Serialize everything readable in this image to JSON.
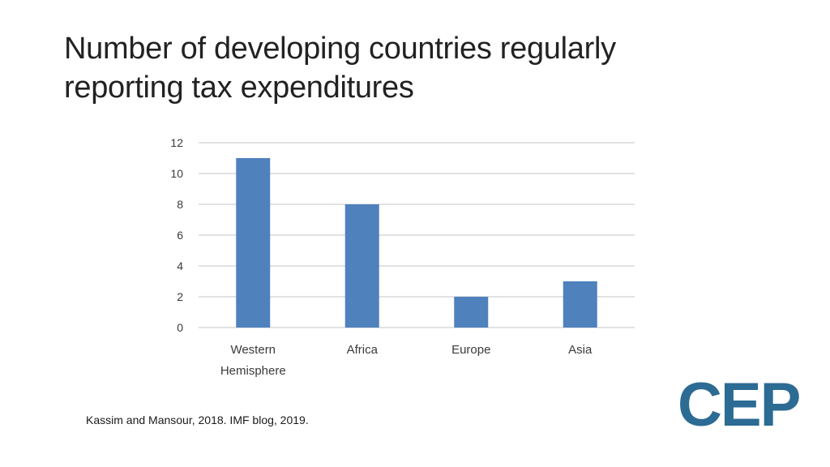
{
  "slide": {
    "title_lines": [
      "Number of developing countries regularly",
      "reporting tax expenditures"
    ],
    "source": "Kassim and Mansour, 2018. IMF blog, 2019.",
    "logo_text": "CEP"
  },
  "colors": {
    "bar": "#4f81bd",
    "grid": "#d9d9d9",
    "logo": "#2c6b94"
  },
  "chart_data": {
    "type": "bar",
    "title": "",
    "xlabel": "",
    "ylabel": "",
    "categories": [
      [
        "Western",
        "Hemisphere"
      ],
      [
        "Africa"
      ],
      [
        "Europe"
      ],
      [
        "Asia"
      ]
    ],
    "values": [
      11,
      8,
      2,
      3
    ],
    "ylim": [
      0,
      12
    ],
    "yticks": [
      0,
      2,
      4,
      6,
      8,
      10,
      12
    ],
    "grid": true,
    "legend": "none"
  }
}
